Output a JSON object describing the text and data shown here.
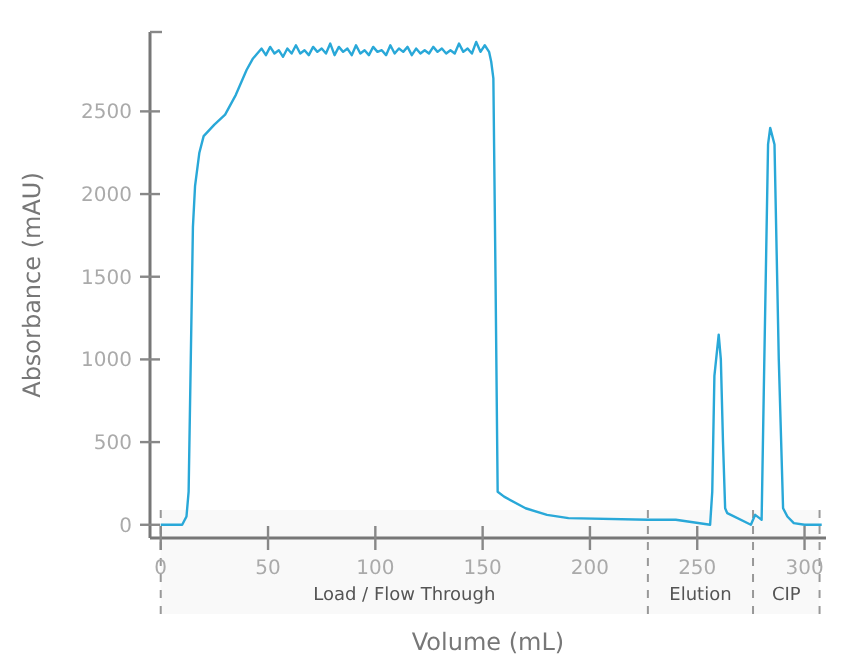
{
  "chart_data": {
    "type": "line",
    "xlabel": "Volume (mL)",
    "ylabel": "Absorbance (mAU)",
    "xlim": [
      -5,
      310
    ],
    "ylim": [
      -80,
      2980
    ],
    "xticks": [
      0,
      50,
      100,
      150,
      200,
      250,
      300
    ],
    "yticks": [
      0,
      500,
      1000,
      1500,
      2000,
      2500
    ],
    "grid": false,
    "marker": "none",
    "line_style": "solid",
    "bands": [
      {
        "axis": "x",
        "from": 0,
        "to": 227,
        "label": "Load / Flow Through",
        "color": "#999999"
      },
      {
        "axis": "x",
        "from": 227,
        "to": 276,
        "label": "Elution",
        "color": "#999999"
      },
      {
        "axis": "x",
        "from": 276,
        "to": 307,
        "label": "CIP",
        "color": "#999999"
      }
    ],
    "series": [
      {
        "color": "#29a8d8",
        "x": [
          0,
          10,
          12,
          13,
          14,
          15,
          16,
          18,
          20,
          25,
          30,
          35,
          40,
          43,
          45,
          47,
          49,
          51,
          53,
          55,
          57,
          59,
          61,
          63,
          65,
          67,
          69,
          71,
          73,
          75,
          77,
          79,
          81,
          83,
          85,
          87,
          89,
          91,
          93,
          95,
          97,
          99,
          101,
          103,
          105,
          107,
          109,
          111,
          113,
          115,
          117,
          119,
          121,
          123,
          125,
          127,
          129,
          131,
          133,
          135,
          137,
          139,
          141,
          143,
          145,
          147,
          149,
          151,
          153,
          154,
          155,
          156,
          157,
          160,
          170,
          180,
          190,
          227,
          240,
          256,
          257,
          258,
          260,
          261,
          262,
          263,
          264,
          275,
          277,
          279,
          280,
          281,
          283,
          284,
          285,
          286,
          288,
          290,
          292,
          295,
          300,
          308
        ],
        "values": [
          0,
          0,
          50,
          200,
          1000,
          1800,
          2050,
          2250,
          2350,
          2420,
          2480,
          2600,
          2750,
          2820,
          2850,
          2880,
          2840,
          2890,
          2850,
          2870,
          2830,
          2880,
          2850,
          2900,
          2850,
          2870,
          2840,
          2890,
          2860,
          2880,
          2850,
          2910,
          2840,
          2890,
          2860,
          2880,
          2840,
          2900,
          2850,
          2870,
          2840,
          2890,
          2860,
          2870,
          2840,
          2900,
          2850,
          2880,
          2860,
          2890,
          2840,
          2880,
          2850,
          2870,
          2850,
          2890,
          2860,
          2880,
          2850,
          2870,
          2850,
          2910,
          2860,
          2880,
          2850,
          2920,
          2860,
          2900,
          2860,
          2800,
          2700,
          1500,
          200,
          170,
          100,
          60,
          40,
          30,
          30,
          0,
          200,
          900,
          1150,
          1000,
          500,
          100,
          70,
          0,
          60,
          40,
          30,
          800,
          2300,
          2400,
          2350,
          2300,
          1000,
          100,
          50,
          10,
          0,
          0
        ]
      }
    ]
  }
}
